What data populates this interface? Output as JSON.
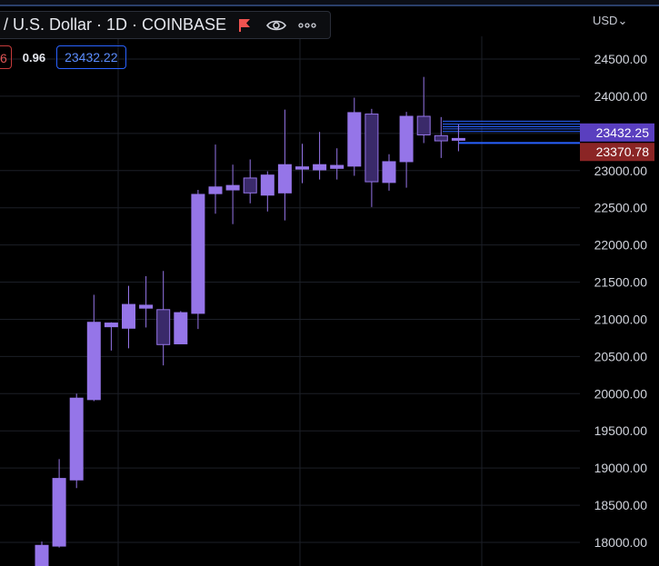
{
  "header": {
    "title": "/ U.S. Dollar · 1D · COINBASE",
    "change_value": "6",
    "spread_value": "0.96",
    "price_value": "23432.22",
    "currency": "USD",
    "flag_color": "#f05350"
  },
  "colors": {
    "candle_fill": "#9575e8",
    "background": "#000000",
    "grid": "#1c1f27",
    "price_tag_current": "#5a3fbf",
    "price_tag_previous": "#8b2525",
    "price_line": "#2962ff"
  },
  "chart_data": {
    "type": "candlestick",
    "title": "",
    "xlabel": "",
    "ylabel": "",
    "ylim": [
      17700,
      24950
    ],
    "y_ticks": [
      "24500.00",
      "24000.00",
      "23500.00",
      "23000.00",
      "22500.00",
      "22000.00",
      "21500.00",
      "21000.00",
      "20500.00",
      "20000.00",
      "19500.00",
      "19000.00",
      "18500.00",
      "18000.00"
    ],
    "y_tick_values": [
      24500,
      24000,
      23500,
      23000,
      22500,
      22000,
      21500,
      21000,
      20500,
      20000,
      19500,
      19000,
      18500,
      18000
    ],
    "candles": [
      {
        "o": 17600,
        "h": 18010,
        "l": 17500,
        "c": 17960
      },
      {
        "o": 17950,
        "h": 19120,
        "l": 17930,
        "c": 18860
      },
      {
        "o": 18840,
        "h": 20000,
        "l": 18730,
        "c": 19940
      },
      {
        "o": 19920,
        "h": 21330,
        "l": 19900,
        "c": 20960
      },
      {
        "o": 20900,
        "h": 20960,
        "l": 20580,
        "c": 20950
      },
      {
        "o": 20880,
        "h": 21450,
        "l": 20610,
        "c": 21200
      },
      {
        "o": 21150,
        "h": 21580,
        "l": 20890,
        "c": 21190
      },
      {
        "o": 21130,
        "h": 21650,
        "l": 20380,
        "c": 20660
      },
      {
        "o": 20670,
        "h": 21110,
        "l": 20670,
        "c": 21090
      },
      {
        "o": 21080,
        "h": 22740,
        "l": 20870,
        "c": 22680
      },
      {
        "o": 22690,
        "h": 23350,
        "l": 22420,
        "c": 22780
      },
      {
        "o": 22740,
        "h": 23080,
        "l": 22280,
        "c": 22800
      },
      {
        "o": 22900,
        "h": 23150,
        "l": 22560,
        "c": 22700
      },
      {
        "o": 22670,
        "h": 22990,
        "l": 22450,
        "c": 22940
      },
      {
        "o": 22700,
        "h": 23820,
        "l": 22330,
        "c": 23080
      },
      {
        "o": 23020,
        "h": 23360,
        "l": 22830,
        "c": 23050
      },
      {
        "o": 23010,
        "h": 23520,
        "l": 22880,
        "c": 23080
      },
      {
        "o": 23030,
        "h": 23300,
        "l": 22880,
        "c": 23070
      },
      {
        "o": 23060,
        "h": 23980,
        "l": 22930,
        "c": 23780
      },
      {
        "o": 23760,
        "h": 23830,
        "l": 22510,
        "c": 22850
      },
      {
        "o": 22840,
        "h": 23220,
        "l": 22730,
        "c": 23120
      },
      {
        "o": 23120,
        "h": 23790,
        "l": 22770,
        "c": 23730
      },
      {
        "o": 23730,
        "h": 24260,
        "l": 23370,
        "c": 23480
      },
      {
        "o": 23470,
        "h": 23720,
        "l": 23170,
        "c": 23400
      },
      {
        "o": 23430,
        "h": 23620,
        "l": 23260,
        "c": 23432.25
      }
    ],
    "price_lines": [
      23665,
      23625,
      23590,
      23560,
      23525
    ],
    "current_price": {
      "value": 23432.25,
      "label": "23432.25"
    },
    "previous_close": {
      "value": 23370.78,
      "label": "23370.78"
    }
  }
}
